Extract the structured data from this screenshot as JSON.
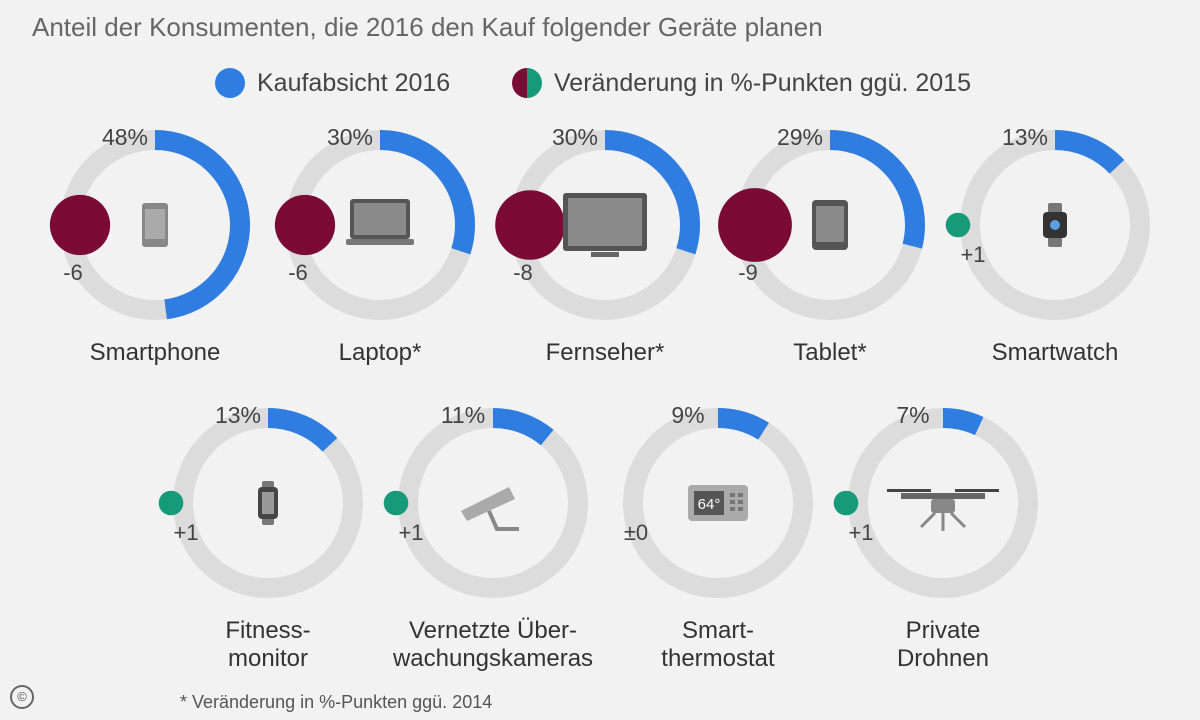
{
  "subtitle": "Anteil der Konsumenten, die 2016 den Kauf folgender Geräte planen",
  "legend": {
    "intent": "Kaufabsicht 2016",
    "change": "Veränderung in %-Punkten ggü. 2015"
  },
  "colors": {
    "intent": "#2f7de0",
    "track": "#dcdcdc",
    "negative": "#7a0b33",
    "positive": "#179a7a",
    "icon": "#555555"
  },
  "footnote": "* Veränderung in %-Punkten ggü. 2014",
  "copyright_symbol": "©",
  "chart_data": {
    "type": "donut",
    "series": [
      {
        "name": "Kaufabsicht 2016",
        "unit": "%"
      },
      {
        "name": "Veränderung in %-Punkten ggü. 2015"
      }
    ],
    "items": [
      {
        "category": [
          "Smartphone"
        ],
        "value": 48,
        "value_label": "48%",
        "change": -6,
        "change_label": "-6",
        "icon": "smartphone-icon"
      },
      {
        "category": [
          "Laptop*"
        ],
        "value": 30,
        "value_label": "30%",
        "change": -6,
        "change_label": "-6",
        "icon": "laptop-icon"
      },
      {
        "category": [
          "Fernseher*"
        ],
        "value": 30,
        "value_label": "30%",
        "change": -8,
        "change_label": "-8",
        "icon": "tv-icon"
      },
      {
        "category": [
          "Tablet*"
        ],
        "value": 29,
        "value_label": "29%",
        "change": -9,
        "change_label": "-9",
        "icon": "tablet-icon"
      },
      {
        "category": [
          "Smartwatch"
        ],
        "value": 13,
        "value_label": "13%",
        "change": 1,
        "change_label": "+1",
        "icon": "smartwatch-icon"
      },
      {
        "category": [
          "Fitness-",
          "monitor"
        ],
        "value": 13,
        "value_label": "13%",
        "change": 1,
        "change_label": "+1",
        "icon": "fitness-tracker-icon"
      },
      {
        "category": [
          "Vernetzte Über-",
          "wachungskameras"
        ],
        "value": 11,
        "value_label": "11%",
        "change": 1,
        "change_label": "+1",
        "icon": "security-camera-icon"
      },
      {
        "category": [
          "Smart-",
          "thermostat"
        ],
        "value": 9,
        "value_label": "9%",
        "change": 0,
        "change_label": "±0",
        "icon": "thermostat-icon",
        "icon_text": "64°"
      },
      {
        "category": [
          "Private",
          "Drohnen"
        ],
        "value": 7,
        "value_label": "7%",
        "change": 1,
        "change_label": "+1",
        "icon": "drone-icon"
      }
    ]
  }
}
